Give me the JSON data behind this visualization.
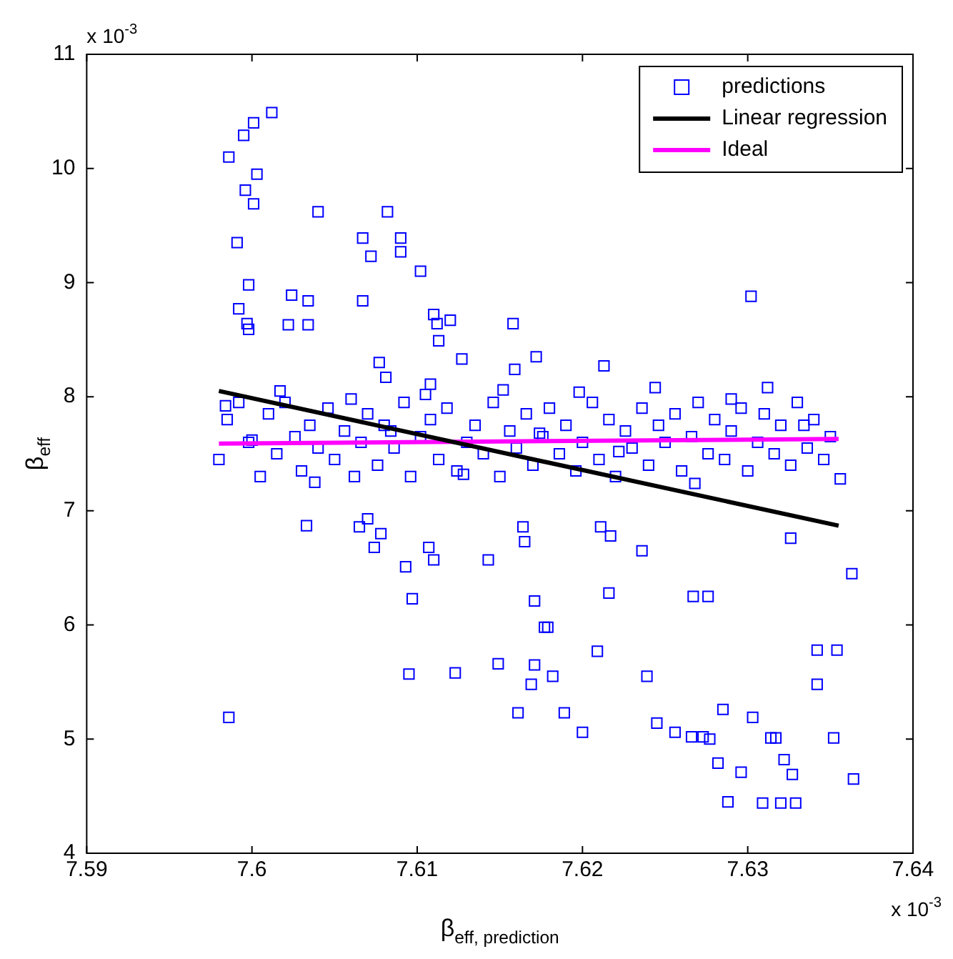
{
  "chart_data": {
    "type": "scatter",
    "xlabel": "β$_{eff, prediction}$",
    "ylabel": "β$_{eff}$",
    "annotations": [
      "x 10$^{-3}$",
      "x 10$^{-3}$"
    ],
    "xlim": [
      7.59,
      7.64
    ],
    "xticks": [
      7.59,
      7.6,
      7.61,
      7.62,
      7.63,
      7.64
    ],
    "ylim": [
      4,
      11
    ],
    "yticks": [
      4,
      5,
      6,
      7,
      8,
      9,
      10,
      11
    ],
    "grid": false,
    "legend": "top right",
    "series": [
      {
        "name": "predictions",
        "marker": "square",
        "color": "#0000ff",
        "x": [
          7.6012,
          7.6001,
          7.5995,
          7.5986,
          7.6003,
          7.5996,
          7.6001,
          7.604,
          7.6082,
          7.5991,
          7.6067,
          7.609,
          7.6072,
          7.609,
          7.6102,
          7.5998,
          7.6024,
          7.6034,
          7.6067,
          7.5992,
          7.5997,
          7.5998,
          7.6022,
          7.6034,
          7.611,
          7.6112,
          7.612,
          7.6113,
          7.6158,
          7.6127,
          7.6077,
          7.6081,
          7.6159,
          7.6108,
          7.6302,
          7.6172,
          7.6213,
          7.6033,
          7.607,
          7.6065,
          7.6078,
          7.6164,
          7.6074,
          7.6093,
          7.6107,
          7.611,
          7.6143,
          7.6165,
          7.6097,
          7.6171,
          7.6177,
          7.6095,
          7.6123,
          7.6149,
          7.6171,
          7.6169,
          7.6161,
          7.5986,
          7.6211,
          7.6217,
          7.6236,
          7.6326,
          7.6363,
          7.6216,
          7.6267,
          7.6276,
          7.6179,
          7.6209,
          7.6342,
          7.6354,
          7.6182,
          7.6239,
          7.6342,
          7.6189,
          7.62,
          7.6285,
          7.6303,
          7.6245,
          7.6256,
          7.6266,
          7.6273,
          7.6277,
          7.6314,
          7.6317,
          7.6352,
          7.6282,
          7.6296,
          7.6322,
          7.6327,
          7.6364,
          7.6288,
          7.6309,
          7.632,
          7.6329,
          7.598,
          7.5985,
          7.5992,
          7.5998,
          7.6005,
          7.601,
          7.6015,
          7.602,
          7.6026,
          7.603,
          7.6035,
          7.604,
          7.6046,
          7.605,
          7.6056,
          7.6062,
          7.6066,
          7.607,
          7.6076,
          7.608,
          7.6086,
          7.6092,
          7.6096,
          7.6102,
          7.6108,
          7.6113,
          7.6118,
          7.6124,
          7.613,
          7.6135,
          7.614,
          7.6146,
          7.615,
          7.6156,
          7.616,
          7.6166,
          7.617,
          7.6176,
          7.618,
          7.6186,
          7.619,
          7.6196,
          7.62,
          7.6206,
          7.621,
          7.6216,
          7.622,
          7.6226,
          7.623,
          7.6236,
          7.624,
          7.6246,
          7.625,
          7.6256,
          7.626,
          7.6266,
          7.627,
          7.6276,
          7.628,
          7.6286,
          7.629,
          7.6296,
          7.63,
          7.6306,
          7.631,
          7.6316,
          7.632,
          7.6326,
          7.633,
          7.6336,
          7.634,
          7.6346,
          7.635,
          7.6356,
          7.5984,
          7.6,
          7.6017,
          7.6038,
          7.606,
          7.6084,
          7.6105,
          7.6128,
          7.6152,
          7.6174,
          7.6198,
          7.6222,
          7.6244,
          7.6268,
          7.629,
          7.6312,
          7.6334
        ],
        "values": [
          10.49,
          10.4,
          10.29,
          10.1,
          9.95,
          9.81,
          9.69,
          9.62,
          9.62,
          9.35,
          9.39,
          9.39,
          9.23,
          9.27,
          9.1,
          8.98,
          8.89,
          8.84,
          8.84,
          8.77,
          8.64,
          8.59,
          8.63,
          8.63,
          8.72,
          8.64,
          8.67,
          8.49,
          8.64,
          8.33,
          8.3,
          8.17,
          8.24,
          8.11,
          8.88,
          8.35,
          8.27,
          6.87,
          6.93,
          6.86,
          6.8,
          6.86,
          6.68,
          6.51,
          6.68,
          6.57,
          6.57,
          6.73,
          6.23,
          6.21,
          5.98,
          5.57,
          5.58,
          5.66,
          5.65,
          5.48,
          5.23,
          5.19,
          6.86,
          6.78,
          6.65,
          6.76,
          6.45,
          6.28,
          6.25,
          6.25,
          5.98,
          5.77,
          5.78,
          5.78,
          5.55,
          5.55,
          5.48,
          5.23,
          5.06,
          5.26,
          5.19,
          5.14,
          5.06,
          5.02,
          5.02,
          5,
          5.01,
          5.01,
          5.01,
          4.79,
          4.71,
          4.82,
          4.69,
          4.65,
          4.45,
          4.44,
          4.44,
          4.44,
          7.45,
          7.8,
          7.95,
          7.6,
          7.3,
          7.85,
          7.5,
          7.95,
          7.65,
          7.35,
          7.75,
          7.55,
          7.9,
          7.45,
          7.7,
          7.3,
          7.6,
          7.85,
          7.4,
          7.75,
          7.55,
          7.95,
          7.3,
          7.65,
          7.8,
          7.45,
          7.9,
          7.35,
          7.6,
          7.75,
          7.5,
          7.95,
          7.3,
          7.7,
          7.55,
          7.85,
          7.4,
          7.65,
          7.9,
          7.5,
          7.75,
          7.35,
          7.6,
          7.95,
          7.45,
          7.8,
          7.3,
          7.7,
          7.55,
          7.9,
          7.4,
          7.75,
          7.6,
          7.85,
          7.35,
          7.65,
          7.95,
          7.5,
          7.8,
          7.45,
          7.7,
          7.9,
          7.35,
          7.6,
          7.85,
          7.5,
          7.75,
          7.4,
          7.95,
          7.55,
          7.8,
          7.45,
          7.65,
          7.28,
          7.92,
          7.62,
          8.05,
          7.25,
          7.98,
          7.7,
          8.02,
          7.32,
          8.06,
          7.68,
          8.04,
          7.52,
          8.08,
          7.24,
          7.98,
          8.08,
          7.75
        ]
      },
      {
        "name": "Linear regression",
        "type": "line",
        "marker": "none",
        "color": "#000000",
        "x": [
          7.598,
          7.6355
        ],
        "values": [
          8.05,
          6.87
        ]
      },
      {
        "name": "Ideal",
        "type": "line",
        "marker": "none",
        "color": "#ff00ff",
        "x": [
          7.598,
          7.6355
        ],
        "values": [
          7.59,
          7.63
        ]
      }
    ]
  }
}
